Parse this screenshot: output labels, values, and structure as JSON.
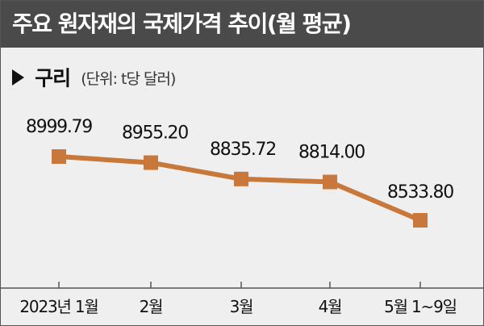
{
  "title": "주요 원자재의 국제가격 추이(월 평균)",
  "subtitle": {
    "series_name": "구리",
    "unit": "(단위: t당 달러)"
  },
  "colors": {
    "title_bg": "#4a4a4a",
    "background": "#efefef",
    "series": "#c8783a"
  },
  "chart_data": {
    "type": "line",
    "title": "주요 원자재의 국제가격 추이(월 평균)",
    "categories": [
      "2023년 1월",
      "2월",
      "3월",
      "4월",
      "5월 1~9일"
    ],
    "series": [
      {
        "name": "구리",
        "values": [
          8999.79,
          8955.2,
          8835.72,
          8814.0,
          8533.8
        ],
        "labels": [
          "8999.79",
          "8955.20",
          "8835.72",
          "8814.00",
          "8533.80"
        ]
      }
    ],
    "ylabel": "(단위: t당 달러)",
    "ylim": [
      8500,
      9020
    ],
    "grid": false,
    "legend": "none"
  }
}
